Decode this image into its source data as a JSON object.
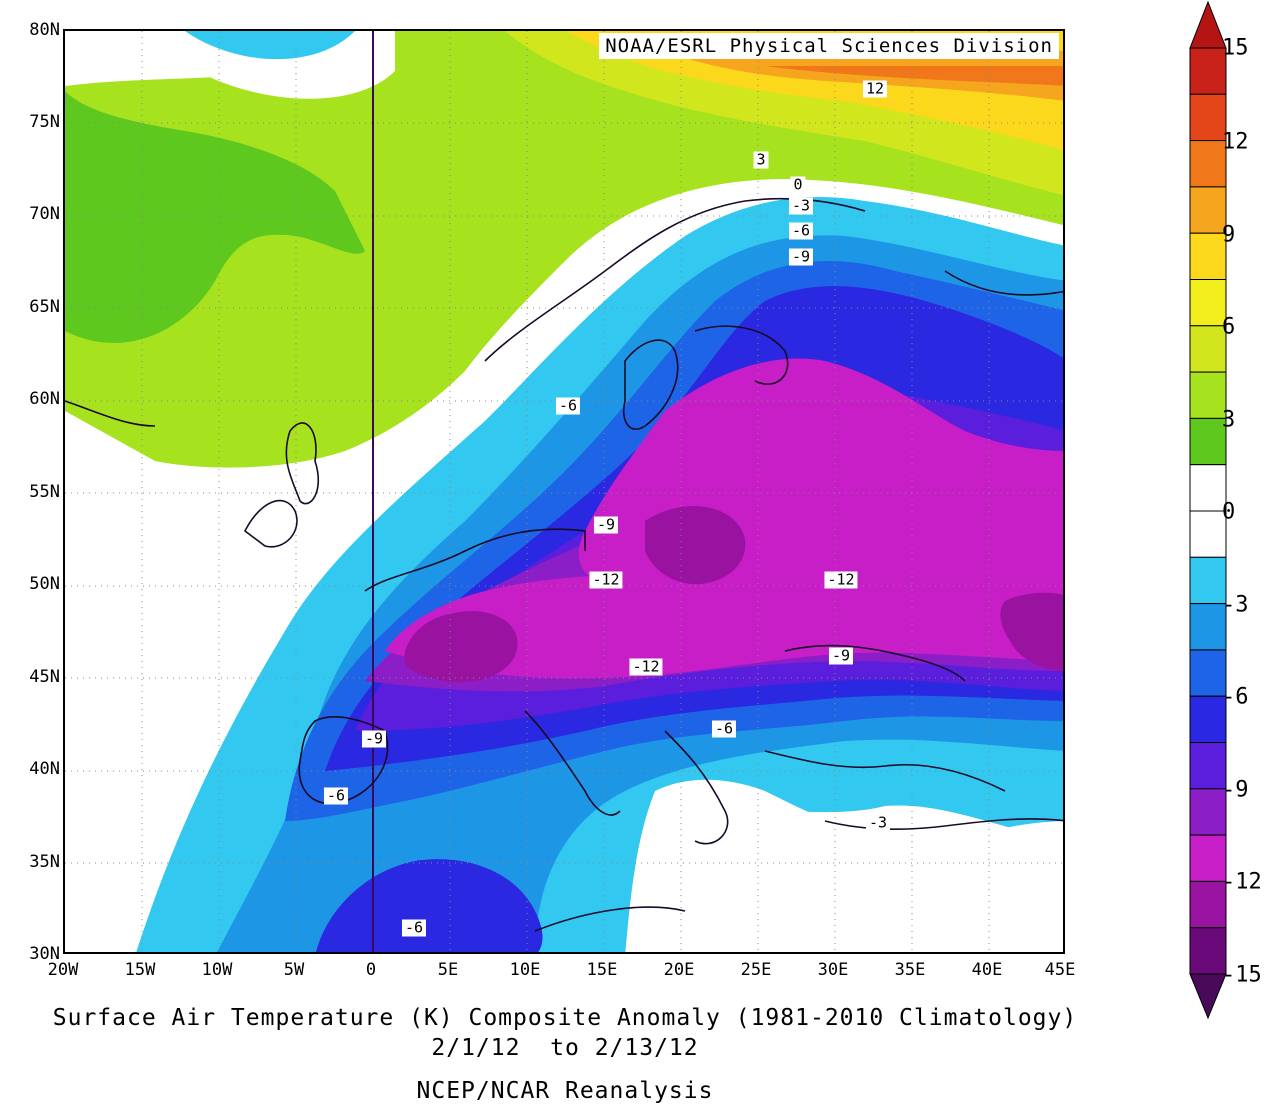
{
  "map": {
    "credit": "NOAA/ESRL Physical Sciences Division",
    "lat_ticks": [
      "80N",
      "75N",
      "70N",
      "65N",
      "60N",
      "55N",
      "50N",
      "45N",
      "40N",
      "35N",
      "30N"
    ],
    "lon_ticks": [
      "20W",
      "15W",
      "10W",
      "5W",
      "0",
      "5E",
      "10E",
      "15E",
      "20E",
      "25E",
      "30E",
      "35E",
      "40E",
      "45E"
    ],
    "contour_labels": [
      "12",
      "3",
      "0",
      "-3",
      "-6",
      "-9",
      "-6",
      "-9",
      "-12",
      "-12",
      "-12",
      "-9",
      "-6",
      "-9",
      "-6",
      "-3",
      "-6"
    ]
  },
  "caption": {
    "line1": "Surface Air Temperature (K) Composite Anomaly (1981-2010 Climatology)",
    "line2": "2/1/12  to 2/13/12",
    "line3": "NCEP/NCAR Reanalysis"
  },
  "colorbar": {
    "labels": [
      "15",
      "12",
      "9",
      "6",
      "3",
      "0",
      "-3",
      "-6",
      "-9",
      "-12",
      "-15"
    ],
    "colors": [
      "#c8221a",
      "#e4461a",
      "#f0781a",
      "#f6a51e",
      "#fbd81c",
      "#f2ee1e",
      "#d2e61e",
      "#a6e21e",
      "#5ec81e",
      "#ffffff",
      "#ffffff",
      "#32c8f0",
      "#1e96e6",
      "#1e64e6",
      "#2a28e0",
      "#5a1edc",
      "#8c1ec8",
      "#c81ec8",
      "#9a12a0",
      "#6a0a7a"
    ]
  }
}
